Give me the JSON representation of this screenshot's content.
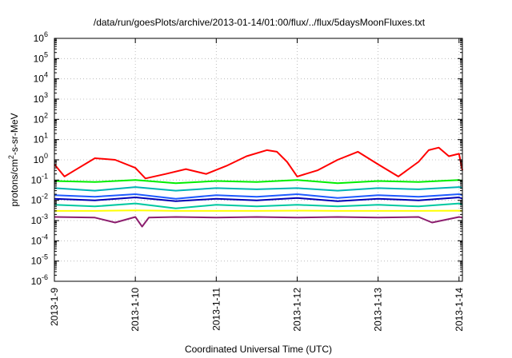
{
  "chart_data": {
    "type": "line",
    "title": "/data/run/goesPlots/archive/2013-01-14/01:00/flux/../flux/5daysMoonFluxes.txt",
    "xlabel": "Coordinated Universal Time (UTC)",
    "ylabel_parts": {
      "base": "protons/cm",
      "sup": "2",
      "rest": "-s-sr-MeV"
    },
    "x_type": "date",
    "xlim": [
      "2013-01-09T00:00",
      "2013-01-14T01:00"
    ],
    "x_ticks": [
      "2013-1-9",
      "2013-1-10",
      "2013-1-11",
      "2013-1-12",
      "2013-1-13",
      "2013-1-14"
    ],
    "y_scale": "log",
    "ylim": [
      1e-06,
      1000000.0
    ],
    "y_ticks": [
      {
        "base": "10",
        "exp": "-6"
      },
      {
        "base": "10",
        "exp": "-5"
      },
      {
        "base": "10",
        "exp": "-4"
      },
      {
        "base": "10",
        "exp": "-3"
      },
      {
        "base": "10",
        "exp": "-2"
      },
      {
        "base": "10",
        "exp": "-1"
      },
      {
        "base": "10",
        "exp": "0"
      },
      {
        "base": "10",
        "exp": "1"
      },
      {
        "base": "10",
        "exp": "2"
      },
      {
        "base": "10",
        "exp": "3"
      },
      {
        "base": "10",
        "exp": "4"
      },
      {
        "base": "10",
        "exp": "5"
      },
      {
        "base": "10",
        "exp": "6"
      }
    ],
    "grid": true,
    "series": [
      {
        "color": "#ff0000",
        "x": [
          "2013-01-09T00:00",
          "2013-01-09T03:00",
          "2013-01-09T06:00",
          "2013-01-09T12:00",
          "2013-01-09T18:00",
          "2013-01-10T00:00",
          "2013-01-10T03:00",
          "2013-01-10T09:00",
          "2013-01-10T15:00",
          "2013-01-10T21:00",
          "2013-01-11T03:00",
          "2013-01-11T09:00",
          "2013-01-11T15:00",
          "2013-01-11T18:00",
          "2013-01-11T21:00",
          "2013-01-12T00:00",
          "2013-01-12T06:00",
          "2013-01-12T12:00",
          "2013-01-12T18:00",
          "2013-01-13T00:00",
          "2013-01-13T06:00",
          "2013-01-13T12:00",
          "2013-01-13T15:00",
          "2013-01-13T18:00",
          "2013-01-13T21:00",
          "2013-01-14T00:00",
          "2013-01-14T01:00"
        ],
        "y": [
          0.6,
          0.15,
          0.3,
          1.2,
          1.0,
          0.4,
          0.12,
          0.2,
          0.35,
          0.2,
          0.5,
          1.5,
          3.0,
          2.5,
          0.8,
          0.15,
          0.3,
          1.0,
          2.5,
          0.6,
          0.15,
          0.8,
          3.0,
          4.0,
          1.5,
          2.0,
          0.3
        ]
      },
      {
        "color": "#00ee00",
        "x": [
          "2013-01-09T00:00",
          "2013-01-09T12:00",
          "2013-01-10T00:00",
          "2013-01-10T12:00",
          "2013-01-11T00:00",
          "2013-01-11T12:00",
          "2013-01-12T00:00",
          "2013-01-12T12:00",
          "2013-01-13T00:00",
          "2013-01-13T12:00",
          "2013-01-14T00:00",
          "2013-01-14T01:00"
        ],
        "y": [
          0.09,
          0.08,
          0.1,
          0.07,
          0.09,
          0.08,
          0.1,
          0.07,
          0.09,
          0.08,
          0.1,
          0.09
        ]
      },
      {
        "color": "#00b4b4",
        "x": [
          "2013-01-09T00:00",
          "2013-01-09T12:00",
          "2013-01-10T00:00",
          "2013-01-10T12:00",
          "2013-01-11T00:00",
          "2013-01-11T12:00",
          "2013-01-12T00:00",
          "2013-01-12T12:00",
          "2013-01-13T00:00",
          "2013-01-13T12:00",
          "2013-01-14T00:00",
          "2013-01-14T01:00"
        ],
        "y": [
          0.04,
          0.03,
          0.045,
          0.03,
          0.04,
          0.035,
          0.04,
          0.03,
          0.04,
          0.035,
          0.045,
          0.04
        ]
      },
      {
        "color": "#1e5aff",
        "x": [
          "2013-01-09T00:00",
          "2013-01-09T12:00",
          "2013-01-10T00:00",
          "2013-01-10T12:00",
          "2013-01-11T00:00",
          "2013-01-11T12:00",
          "2013-01-12T00:00",
          "2013-01-12T12:00",
          "2013-01-13T00:00",
          "2013-01-13T12:00",
          "2013-01-14T00:00",
          "2013-01-14T01:00"
        ],
        "y": [
          0.018,
          0.015,
          0.02,
          0.012,
          0.018,
          0.015,
          0.02,
          0.013,
          0.018,
          0.015,
          0.02,
          0.018
        ]
      },
      {
        "color": "#0000b4",
        "x": [
          "2013-01-09T00:00",
          "2013-01-09T12:00",
          "2013-01-10T00:00",
          "2013-01-10T12:00",
          "2013-01-11T00:00",
          "2013-01-11T12:00",
          "2013-01-12T00:00",
          "2013-01-12T12:00",
          "2013-01-13T00:00",
          "2013-01-13T12:00",
          "2013-01-14T00:00",
          "2013-01-14T01:00"
        ],
        "y": [
          0.012,
          0.01,
          0.014,
          0.009,
          0.012,
          0.01,
          0.013,
          0.009,
          0.012,
          0.01,
          0.014,
          0.012
        ]
      },
      {
        "color": "#00c8a0",
        "x": [
          "2013-01-09T00:00",
          "2013-01-09T12:00",
          "2013-01-10T00:00",
          "2013-01-10T12:00",
          "2013-01-11T00:00",
          "2013-01-11T12:00",
          "2013-01-12T00:00",
          "2013-01-12T12:00",
          "2013-01-13T00:00",
          "2013-01-13T12:00",
          "2013-01-14T00:00",
          "2013-01-14T01:00"
        ],
        "y": [
          0.006,
          0.005,
          0.007,
          0.004,
          0.006,
          0.005,
          0.006,
          0.005,
          0.006,
          0.005,
          0.007,
          0.006
        ]
      },
      {
        "color": "#ffff00",
        "x": [
          "2013-01-09T00:00",
          "2013-01-09T12:00",
          "2013-01-10T00:00",
          "2013-01-10T12:00",
          "2013-01-11T00:00",
          "2013-01-11T12:00",
          "2013-01-12T00:00",
          "2013-01-12T12:00",
          "2013-01-13T00:00",
          "2013-01-13T12:00",
          "2013-01-14T00:00",
          "2013-01-14T01:00"
        ],
        "y": [
          0.003,
          0.003,
          0.0032,
          0.003,
          0.003,
          0.003,
          0.0031,
          0.003,
          0.003,
          0.003,
          0.0031,
          0.003
        ]
      },
      {
        "color": "#8c1e6e",
        "x": [
          "2013-01-09T00:00",
          "2013-01-09T12:00",
          "2013-01-09T18:00",
          "2013-01-10T00:00",
          "2013-01-10T02:00",
          "2013-01-10T04:00",
          "2013-01-10T12:00",
          "2013-01-11T00:00",
          "2013-01-11T12:00",
          "2013-01-12T00:00",
          "2013-01-12T12:00",
          "2013-01-13T00:00",
          "2013-01-13T12:00",
          "2013-01-13T16:00",
          "2013-01-14T00:00",
          "2013-01-14T01:00"
        ],
        "y": [
          0.0015,
          0.0014,
          0.0008,
          0.0015,
          0.0005,
          0.0014,
          0.0015,
          0.0014,
          0.0015,
          0.0014,
          0.0015,
          0.0014,
          0.0015,
          0.0008,
          0.0015,
          0.0014
        ]
      }
    ]
  }
}
